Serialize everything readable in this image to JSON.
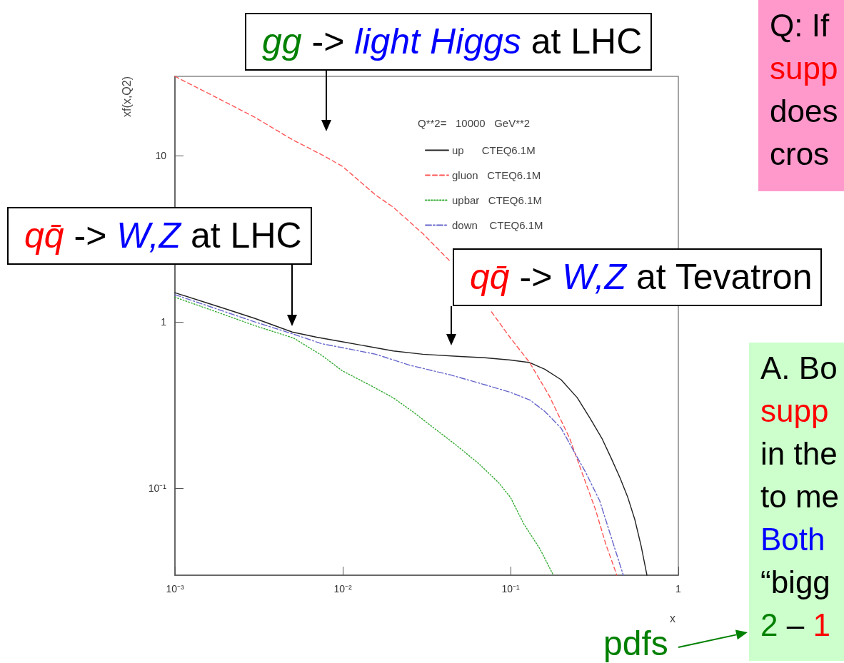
{
  "chart_data": {
    "type": "line",
    "xlabel": "x",
    "ylabel": "xf(x,Q2)",
    "legend_title": "Q**2=   10000   GeV**2",
    "log": "xy",
    "grid": false,
    "legend": "top right",
    "marker": "none",
    "xlim": [
      0.001,
      1
    ],
    "ylim": [
      0.03,
      30
    ],
    "xticks": [
      {
        "value": 0.001,
        "label": "10⁻³"
      },
      {
        "value": 0.01,
        "label": "10⁻²"
      },
      {
        "value": 0.1,
        "label": "10⁻¹"
      },
      1
    ],
    "yticks": [
      {
        "value": 0.1,
        "label": "10⁻¹"
      },
      1,
      10
    ],
    "series": [
      {
        "name": "up      CTEQ6.1M",
        "color": "#222222",
        "line_style": "solid",
        "x": [
          0.001,
          0.002,
          0.003,
          0.005,
          0.007,
          0.01,
          0.02,
          0.03,
          0.05,
          0.07,
          0.1,
          0.13,
          0.16,
          0.2,
          0.25,
          0.3,
          0.35,
          0.4,
          0.45,
          0.5,
          0.55,
          0.6,
          0.65
        ],
        "values": [
          1.5,
          1.2,
          1.05,
          0.87,
          0.81,
          0.76,
          0.67,
          0.64,
          0.62,
          0.61,
          0.59,
          0.57,
          0.52,
          0.45,
          0.35,
          0.26,
          0.2,
          0.15,
          0.115,
          0.088,
          0.065,
          0.045,
          0.03
        ]
      },
      {
        "name": "gluon   CTEQ6.1M",
        "color": "#ff5555",
        "line_style": "dashed",
        "x": [
          0.001,
          0.002,
          0.003,
          0.005,
          0.0077,
          0.01,
          0.0157,
          0.02,
          0.03,
          0.044,
          0.06,
          0.077,
          0.1,
          0.13,
          0.17,
          0.225,
          0.27,
          0.32,
          0.37,
          0.43
        ],
        "values": [
          30,
          21,
          17,
          12.5,
          10,
          8.6,
          5.8,
          4.9,
          3.4,
          2.3,
          null,
          1.15,
          0.8,
          0.57,
          0.36,
          0.2,
          0.12,
          0.075,
          0.046,
          0.03
        ]
      },
      {
        "name": "upbar   CTEQ6.1M",
        "color": "#33aa33",
        "line_style": "dotted",
        "x": [
          0.001,
          0.002,
          0.003,
          0.0051,
          0.0075,
          0.0099,
          0.015,
          0.02,
          0.026,
          0.035,
          0.048,
          0.065,
          0.085,
          0.1,
          0.12,
          0.15,
          0.18
        ],
        "values": [
          1.41,
          1.1,
          0.95,
          0.8,
          0.63,
          0.51,
          0.41,
          0.35,
          0.29,
          0.23,
          0.18,
          0.14,
          0.108,
          0.088,
          0.061,
          0.043,
          0.03
        ]
      },
      {
        "name": "down    CTEQ6.1M",
        "color": "#6666cc",
        "line_style": "dashdot",
        "x": [
          0.001,
          0.002,
          0.003,
          0.005,
          0.0075,
          0.01,
          0.0157,
          0.025,
          0.044,
          0.07,
          0.098,
          0.13,
          0.16,
          0.2,
          0.236,
          0.28,
          0.34,
          0.4,
          0.47
        ],
        "values": [
          1.46,
          1.15,
          1.0,
          0.85,
          0.74,
          0.7,
          0.64,
          0.55,
          0.48,
          0.42,
          0.38,
          0.34,
          0.29,
          0.23,
          0.17,
          0.125,
          0.084,
          0.05,
          0.03
        ]
      }
    ],
    "annotations": [
      "gg -> light Higgs at LHC",
      "qq̄ -> W,Z at LHC",
      "qq̄ -> W,Z at Tevatron",
      "Q: If\nsupp\ndoes\ncros",
      "A. Bo\nsupp\nin the\nto me\nBoth\n“bigg\n2 – 1",
      "pdfs"
    ]
  }
}
